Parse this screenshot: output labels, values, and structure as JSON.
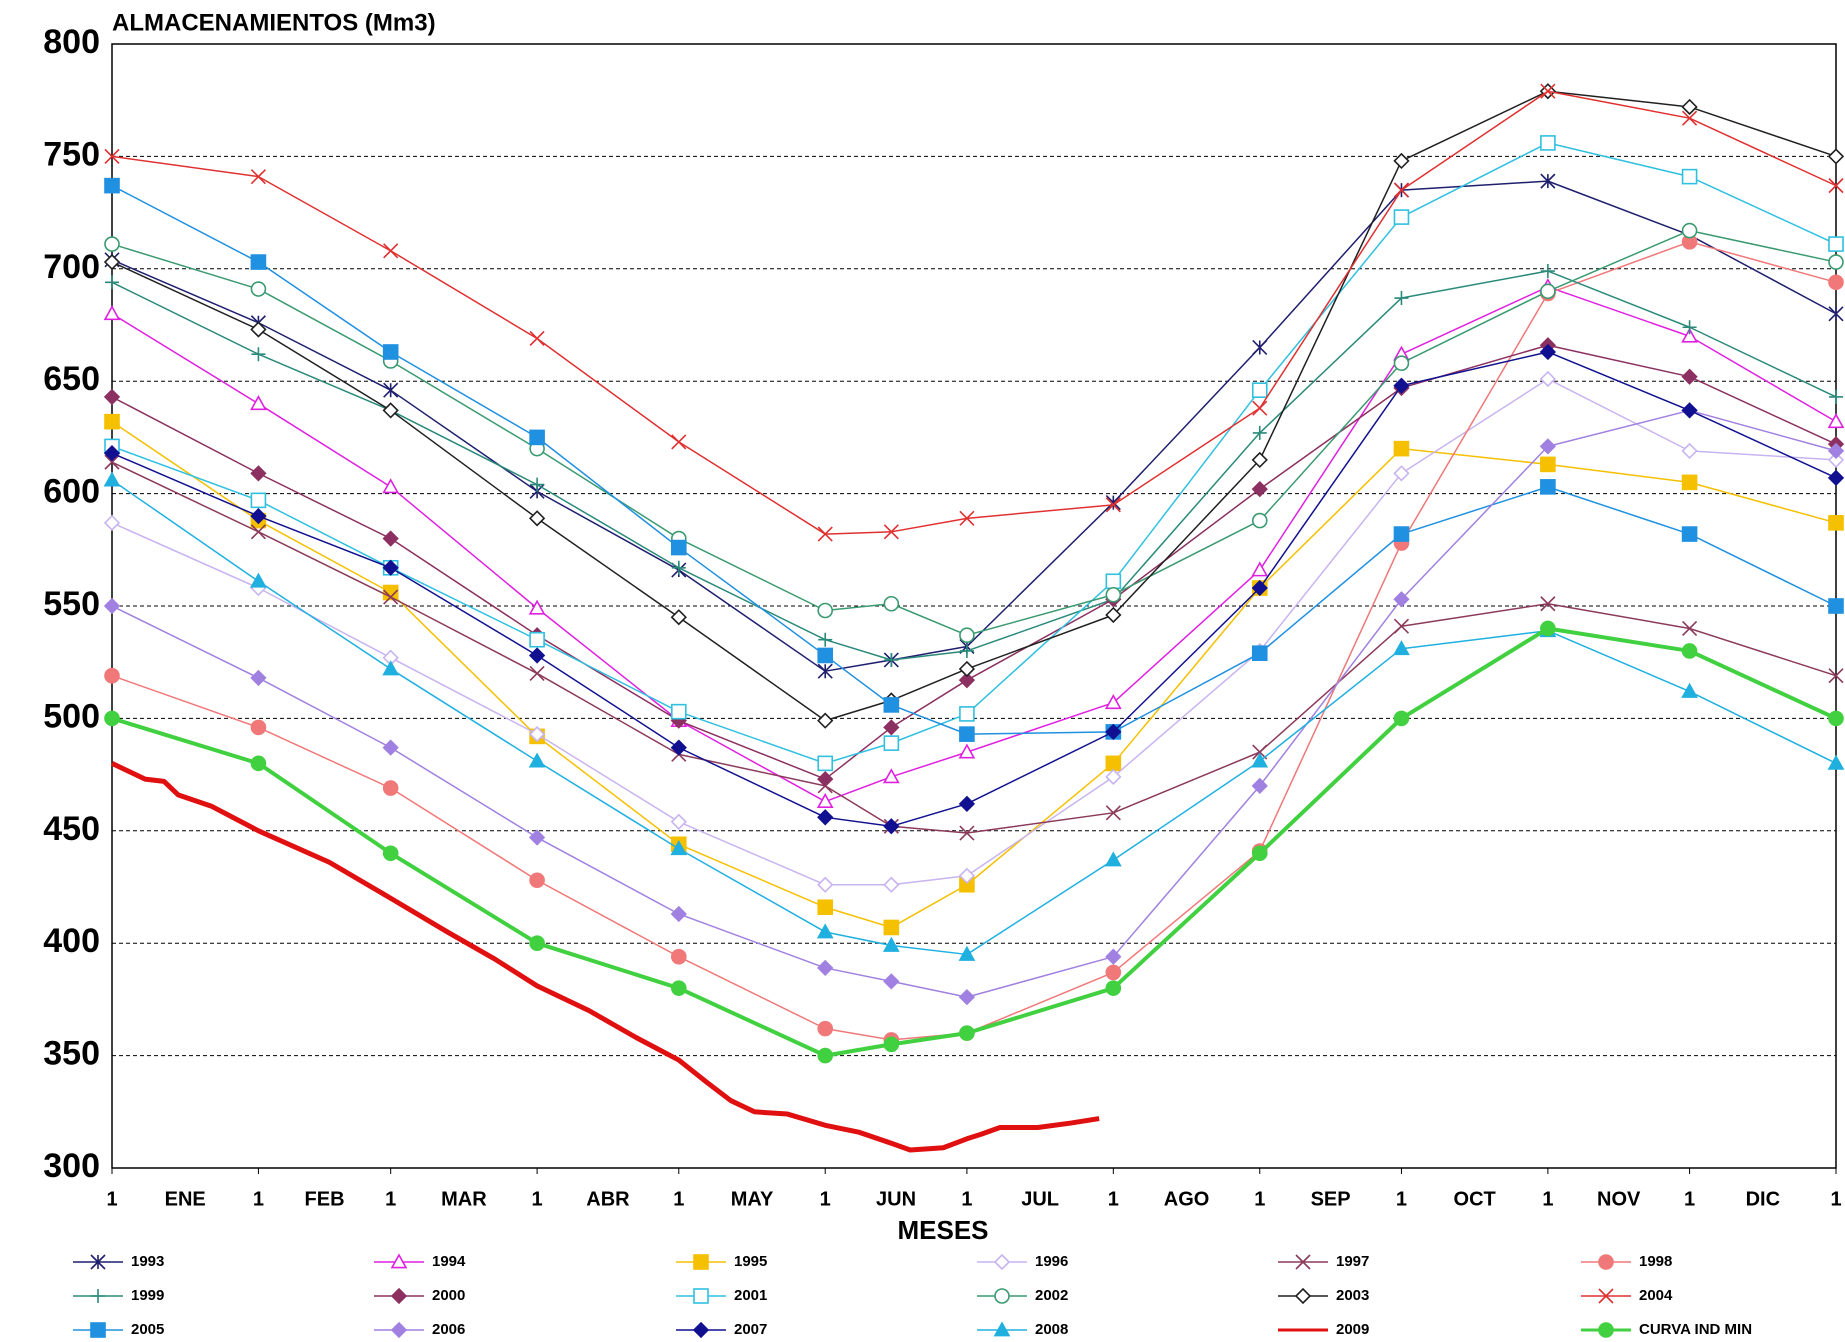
{
  "chart_data": {
    "type": "line",
    "title": "ALMACENAMIENTOS  (Mm3)",
    "x_label": "MESES",
    "x": [
      1,
      32,
      60,
      91,
      121,
      152,
      166,
      182,
      213,
      244,
      274,
      305,
      335,
      366
    ],
    "xlim": [
      1,
      366
    ],
    "xticks": [
      1,
      {
        "value": 32,
        "label": "1"
      },
      {
        "value": 60,
        "label": "1"
      },
      {
        "value": 91,
        "label": "1"
      },
      {
        "value": 121,
        "label": "1"
      },
      {
        "value": 152,
        "label": "1"
      },
      {
        "value": 182,
        "label": "1"
      },
      {
        "value": 213,
        "label": "1"
      },
      {
        "value": 244,
        "label": "1"
      },
      {
        "value": 274,
        "label": "1"
      },
      {
        "value": 305,
        "label": "1"
      },
      {
        "value": 335,
        "label": "1"
      },
      {
        "value": 366,
        "label": "1"
      }
    ],
    "month_labels": [
      "ENE",
      "FEB",
      "MAR",
      "ABR",
      "MAY",
      "JUN",
      "JUL",
      "AGO",
      "SEP",
      "OCT",
      "NOV",
      "DIC"
    ],
    "ylim": [
      300,
      800
    ],
    "yticks": [
      300,
      350,
      400,
      450,
      500,
      550,
      600,
      650,
      700,
      750,
      800
    ],
    "grid": true,
    "series": [
      {
        "name": "1993",
        "color": "#1f1f6e",
        "marker": "asterisk",
        "line_width": 1.5,
        "values": [
          704,
          676,
          646,
          601,
          566,
          521,
          526,
          532,
          596,
          665,
          735,
          739,
          715,
          680
        ]
      },
      {
        "name": "1994",
        "color": "#e020e0",
        "marker": "triangle-open",
        "line_width": 1.5,
        "values": [
          680,
          640,
          603,
          549,
          499,
          463,
          474,
          485,
          507,
          566,
          662,
          692,
          670,
          632
        ]
      },
      {
        "name": "1995",
        "color": "#f5c000",
        "marker": "square",
        "line_width": 1.5,
        "values": [
          632,
          588,
          556,
          492,
          444,
          416,
          407,
          426,
          480,
          558,
          620,
          613,
          605,
          587
        ]
      },
      {
        "name": "1996",
        "color": "#c8b4f0",
        "marker": "diamond-open",
        "line_width": 1.5,
        "values": [
          587,
          558,
          527,
          493,
          454,
          426,
          426,
          430,
          474,
          530,
          609,
          651,
          619,
          615
        ]
      },
      {
        "name": "1997",
        "color": "#8b3a5a",
        "marker": "x",
        "line_width": 1.5,
        "values": [
          614,
          583,
          554,
          520,
          484,
          470,
          452,
          449,
          458,
          485,
          541,
          551,
          540,
          519
        ]
      },
      {
        "name": "1998",
        "color": "#f07878",
        "marker": "circle",
        "line_width": 1.5,
        "values": [
          519,
          496,
          469,
          428,
          394,
          362,
          357,
          360,
          387,
          441,
          578,
          689,
          712,
          694
        ]
      },
      {
        "name": "1999",
        "color": "#2a8a7a",
        "marker": "plus",
        "line_width": 1.5,
        "values": [
          694,
          662,
          637,
          604,
          567,
          535,
          526,
          530,
          553,
          627,
          687,
          699,
          674,
          643
        ]
      },
      {
        "name": "2000",
        "color": "#8b3060",
        "marker": "diamond",
        "line_width": 1.5,
        "values": [
          643,
          609,
          580,
          537,
          499,
          473,
          496,
          517,
          553,
          602,
          647,
          666,
          652,
          622
        ]
      },
      {
        "name": "2001",
        "color": "#30c0e0",
        "marker": "square-open",
        "line_width": 1.5,
        "values": [
          621,
          597,
          567,
          535,
          503,
          480,
          489,
          502,
          561,
          646,
          723,
          756,
          741,
          711
        ]
      },
      {
        "name": "2002",
        "color": "#3a9a70",
        "marker": "circle-open",
        "line_width": 1.5,
        "values": [
          711,
          691,
          659,
          620,
          580,
          548,
          551,
          537,
          555,
          588,
          658,
          690,
          717,
          703
        ]
      },
      {
        "name": "2003",
        "color": "#202020",
        "marker": "diamond-open",
        "line_width": 1.5,
        "values": [
          703,
          673,
          637,
          589,
          545,
          499,
          508,
          522,
          546,
          615,
          748,
          779,
          772,
          750
        ]
      },
      {
        "name": "2004",
        "color": "#e03030",
        "marker": "x",
        "line_width": 1.5,
        "values": [
          750,
          741,
          708,
          669,
          623,
          582,
          583,
          589,
          595,
          638,
          735,
          779,
          767,
          737
        ]
      },
      {
        "name": "2005",
        "color": "#2090e0",
        "marker": "square",
        "line_width": 1.5,
        "values": [
          737,
          703,
          663,
          625,
          576,
          528,
          506,
          493,
          494,
          529,
          582,
          603,
          582,
          550
        ]
      },
      {
        "name": "2006",
        "color": "#a080e0",
        "marker": "diamond",
        "line_width": 1.5,
        "values": [
          550,
          518,
          487,
          447,
          413,
          389,
          383,
          376,
          394,
          470,
          553,
          621,
          637,
          619
        ]
      },
      {
        "name": "2007",
        "color": "#101090",
        "marker": "diamond",
        "line_width": 1.5,
        "values": [
          618,
          590,
          567,
          528,
          487,
          456,
          452,
          462,
          494,
          558,
          648,
          663,
          637,
          607
        ]
      },
      {
        "name": "2008",
        "color": "#20b0e0",
        "marker": "triangle",
        "line_width": 1.5,
        "values": [
          606,
          561,
          522,
          481,
          442,
          405,
          399,
          395,
          437,
          481,
          531,
          539,
          512,
          480
        ]
      },
      {
        "name": "2009",
        "color": "#e01010",
        "marker": "none",
        "line_width": 5,
        "x": [
          1,
          8,
          12,
          15,
          22,
          32,
          47,
          60,
          72,
          82,
          91,
          102,
          112,
          121,
          127,
          132,
          137,
          144,
          152,
          159,
          166,
          170,
          177,
          182,
          185,
          189,
          197,
          204,
          210
        ],
        "values": [
          480,
          473,
          472,
          466,
          461,
          450,
          436,
          420,
          405,
          393,
          381,
          370,
          358,
          348,
          338,
          330,
          325,
          324,
          319,
          316,
          311,
          308,
          309,
          313,
          315,
          318,
          318,
          320,
          322
        ]
      },
      {
        "name": "CURVA IND MIN",
        "color": "#40d040",
        "marker": "circle",
        "line_width": 4,
        "values": [
          500,
          480,
          440,
          400,
          380,
          350,
          355,
          360,
          380,
          440,
          500,
          540,
          530,
          500
        ]
      }
    ]
  }
}
